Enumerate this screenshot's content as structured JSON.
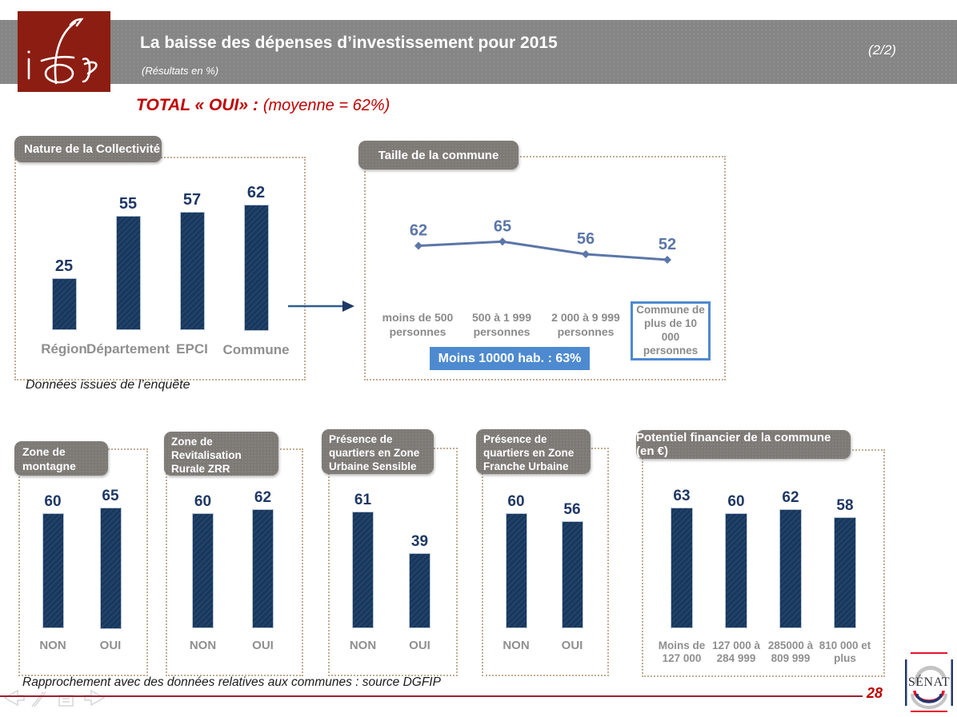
{
  "header": {
    "logo_text": "ifop",
    "title": "La baisse des dépenses d’investissement pour 2015",
    "subtitle": "(Résultats en %)",
    "page_indicator": "(2/2)"
  },
  "summary": {
    "label": "TOTAL « OUI» :",
    "value": "(moyenne = 62%)"
  },
  "captions": {
    "survey_source": "Données issues de l’enquête",
    "communes_source": "Rapprochement avec des données relatives aux communes : source DGFIP"
  },
  "footer": {
    "page_number": "28",
    "senat_label": "SÉNAT"
  },
  "colors": {
    "bar_navy": "#17375e",
    "value_navy": "#1f3864",
    "line_blue": "#5b76a8",
    "badge_blue": "#4e8ad0",
    "tab_gray": "#7d7a76",
    "band_gray": "#858585",
    "ifop_red": "#8c1d12",
    "accent_red": "#c00000",
    "footer_line_red": "#9a2030",
    "dotted_border_tan": "#c2ab92",
    "category_gray": "#8f8f8f"
  },
  "chart_data": [
    {
      "type": "bar",
      "title": "Nature de la Collectivité",
      "categories": [
        "Région",
        "Département",
        "EPCI",
        "Commune"
      ],
      "values": [
        25,
        55,
        57,
        62
      ],
      "ylim": [
        0,
        70
      ],
      "grid": false,
      "axes_hidden": true
    },
    {
      "type": "line",
      "title": "Taille de la commune",
      "categories": [
        "moins de 500 personnes",
        "500 à 1 999 personnes",
        "2 000 à 9 999 personnes",
        "Commune de plus de 10 000 personnes"
      ],
      "values": [
        62,
        65,
        56,
        52
      ],
      "ylim": [
        40,
        75
      ],
      "grid": false,
      "axes_hidden": true,
      "marker": "diamond",
      "highlight_box_category": "Commune de plus de 10 000 personnes",
      "annotation": "Moins 10000 hab. : 63%"
    },
    {
      "type": "bar",
      "title": "Zone de montagne",
      "categories": [
        "NON",
        "OUI"
      ],
      "values": [
        60,
        65
      ],
      "ylim": [
        0,
        70
      ],
      "grid": false,
      "axes_hidden": true
    },
    {
      "type": "bar",
      "title": "Zone de Revitalisation Rurale ZRR",
      "categories": [
        "NON",
        "OUI"
      ],
      "values": [
        60,
        62
      ],
      "ylim": [
        0,
        70
      ],
      "grid": false,
      "axes_hidden": true
    },
    {
      "type": "bar",
      "title": "Présence de quartiers en Zone Urbaine Sensible",
      "categories": [
        "NON",
        "OUI"
      ],
      "values": [
        61,
        39
      ],
      "ylim": [
        0,
        70
      ],
      "grid": false,
      "axes_hidden": true
    },
    {
      "type": "bar",
      "title": "Présence de quartiers en Zone Franche Urbaine",
      "categories": [
        "NON",
        "OUI"
      ],
      "values": [
        60,
        56
      ],
      "ylim": [
        0,
        70
      ],
      "grid": false,
      "axes_hidden": true
    },
    {
      "type": "bar",
      "title": "Potentiel financier de la commune (en €)",
      "categories": [
        "Moins de 127 000",
        "127 000 à 284 999",
        "285000 à 809 999",
        "810 000 et plus"
      ],
      "values": [
        63,
        60,
        62,
        58
      ],
      "ylim": [
        0,
        70
      ],
      "grid": false,
      "axes_hidden": true
    }
  ]
}
